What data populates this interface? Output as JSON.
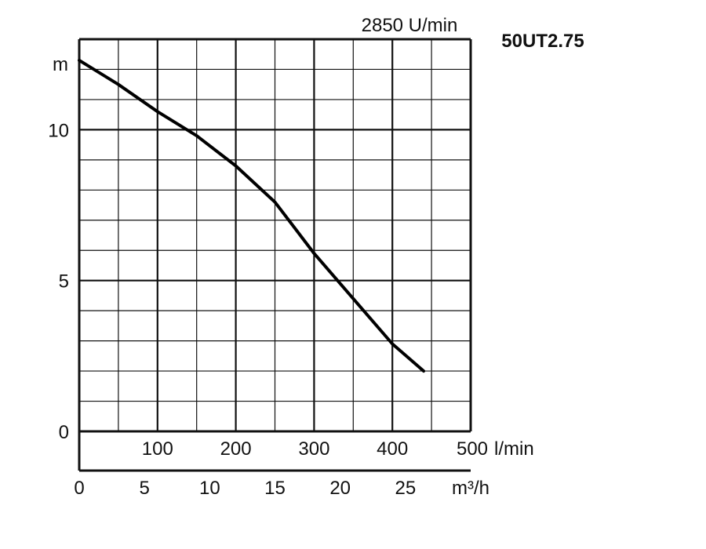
{
  "chart_data": {
    "type": "line",
    "title": "50UT2.75",
    "speed_label": "2850 U/min",
    "ylabel": "m",
    "ylim": [
      0,
      13
    ],
    "y_ticks": [
      0,
      5,
      10
    ],
    "x_primary": {
      "unit": "l/min",
      "lim": [
        0,
        500
      ],
      "ticks": [
        100,
        200,
        300,
        400,
        500
      ]
    },
    "x_secondary": {
      "unit": "m³/h",
      "lim": [
        0,
        30
      ],
      "ticks": [
        0,
        5,
        10,
        15,
        20,
        25
      ]
    },
    "grid": true,
    "series": [
      {
        "x": [
          0,
          50,
          100,
          150,
          200,
          250,
          300,
          350,
          400,
          440
        ],
        "values": [
          12.3,
          11.5,
          10.6,
          9.8,
          8.8,
          7.6,
          5.9,
          4.4,
          2.9,
          2.0
        ]
      }
    ]
  }
}
